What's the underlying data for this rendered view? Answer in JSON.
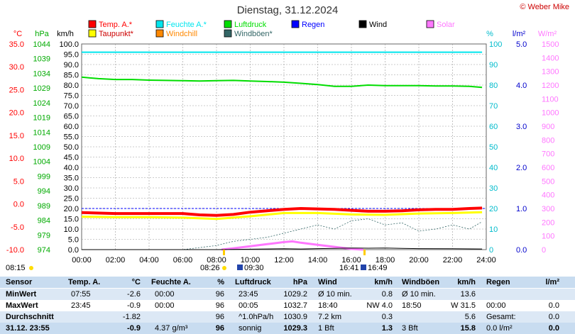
{
  "copyright": "© Weber Mike",
  "chart_data": {
    "type": "line",
    "title": "Dienstag, 31.12.2024",
    "unit_labels": {
      "temp": "°C",
      "pressure": "hPa",
      "wind": "km/h",
      "humidity": "%",
      "rain": "l/m²",
      "solar": "W/m²"
    },
    "axes": {
      "temp": {
        "min": -10,
        "max": 35,
        "ticks": [
          "35.0",
          "30.0",
          "25.0",
          "20.0",
          "15.0",
          "10.0",
          "5.0",
          "0.0",
          "-5.0",
          "-10.0"
        ]
      },
      "pressure": {
        "min": 974,
        "max": 1044,
        "ticks": [
          "1044",
          "1039",
          "1034",
          "1029",
          "1024",
          "1019",
          "1014",
          "1009",
          "1004",
          "999",
          "994",
          "989",
          "984",
          "979",
          "974"
        ]
      },
      "wind": {
        "min": 0,
        "max": 100,
        "ticks": [
          "100.0",
          "95.0",
          "90.0",
          "85.0",
          "80.0",
          "75.0",
          "70.0",
          "65.0",
          "60.0",
          "55.0",
          "50.0",
          "45.0",
          "40.0",
          "35.0",
          "30.0",
          "25.0",
          "20.0",
          "15.0",
          "10.0",
          "5.0",
          "0.0"
        ]
      },
      "humidity": {
        "min": 0,
        "max": 100,
        "ticks": [
          "100",
          "90",
          "80",
          "70",
          "60",
          "50",
          "40",
          "30",
          "20",
          "10",
          "0"
        ]
      },
      "rain": {
        "min": 0,
        "max": 5,
        "ticks": [
          "5.0",
          "4.0",
          "3.0",
          "2.0",
          "1.0",
          "0.0"
        ]
      },
      "solar": {
        "min": 0,
        "max": 1500,
        "ticks": [
          "1500",
          "1400",
          "1300",
          "1200",
          "1100",
          "1000",
          "900",
          "800",
          "700",
          "600",
          "500",
          "400",
          "300",
          "200",
          "100",
          "0"
        ]
      }
    },
    "x_ticks": [
      "00:00",
      "02:00",
      "04:00",
      "06:00",
      "08:00",
      "10:00",
      "12:00",
      "14:00",
      "16:00",
      "18:00",
      "20:00",
      "22:00",
      "24:00"
    ],
    "legend": [
      {
        "name": "Temp. A.*",
        "color": "#ff0000"
      },
      {
        "name": "Feuchte A.*",
        "color": "#00e5ee"
      },
      {
        "name": "Luftdruck",
        "color": "#00dd00"
      },
      {
        "name": "Regen",
        "color": "#0000ff"
      },
      {
        "name": "Wind",
        "color": "#000000"
      },
      {
        "name": "Solar",
        "color": "#ff77ff"
      },
      {
        "name": "Taupunkt*",
        "color": "#ffff00"
      },
      {
        "name": "Windchill",
        "color": "#ff8800"
      },
      {
        "name": "Windböen*",
        "color": "#336666"
      }
    ],
    "sun": {
      "sunrise": "08:15",
      "sunset": "16:41",
      "dawn": "08:26",
      "moonrise": "09:30",
      "moonset": "16:49"
    },
    "series": [
      {
        "name": "Temp. A.*",
        "axis": "temp",
        "x": [
          0,
          2,
          4,
          6,
          7,
          8,
          9,
          10,
          11,
          12,
          13,
          14,
          15,
          16,
          17,
          18,
          19,
          20,
          21,
          22,
          23,
          23.75
        ],
        "y": [
          -1.9,
          -2.1,
          -2.1,
          -2.1,
          -2.4,
          -2.5,
          -2.3,
          -1.8,
          -1.5,
          -1.2,
          -1.0,
          -1.1,
          -1.2,
          -1.4,
          -1.6,
          -1.6,
          -1.5,
          -1.3,
          -1.2,
          -1.2,
          -1.0,
          -0.9
        ]
      },
      {
        "name": "Taupunkt*",
        "axis": "temp",
        "x": [
          0,
          2,
          4,
          6,
          8,
          10,
          12,
          14,
          16,
          18,
          20,
          22,
          23.75
        ],
        "y": [
          -2.8,
          -2.9,
          -2.9,
          -3.0,
          -3.3,
          -2.7,
          -2.0,
          -2.0,
          -2.3,
          -2.4,
          -2.1,
          -2.0,
          -1.8
        ]
      },
      {
        "name": "Feuchte A.*",
        "axis": "humidity",
        "x": [
          0,
          23.75
        ],
        "y": [
          96,
          96
        ]
      },
      {
        "name": "Luftdruck",
        "axis": "pressure",
        "x": [
          0,
          1,
          2,
          3,
          4,
          5,
          6,
          7,
          8,
          9,
          10,
          11,
          12,
          13,
          14,
          15,
          16,
          17,
          18,
          19,
          20,
          21,
          22,
          23,
          23.75
        ],
        "y": [
          1032.7,
          1032.2,
          1031.9,
          1031.9,
          1031.7,
          1031.6,
          1031.5,
          1031.4,
          1031.5,
          1031.6,
          1031.4,
          1031.2,
          1031.0,
          1030.6,
          1030.2,
          1029.6,
          1029.6,
          1030.0,
          1029.8,
          1029.8,
          1029.8,
          1029.7,
          1029.7,
          1029.6,
          1029.2
        ]
      },
      {
        "name": "Windböen*",
        "axis": "wind",
        "x": [
          0,
          2,
          4,
          6,
          7,
          8,
          9,
          10,
          11,
          12,
          13,
          14,
          15,
          16,
          17,
          18,
          19,
          20,
          21,
          22,
          23,
          23.75
        ],
        "y": [
          0,
          0,
          0,
          0,
          1,
          2,
          4,
          5,
          6,
          8,
          10,
          12,
          10,
          14,
          15,
          12,
          13,
          9,
          10,
          12,
          10,
          13.6
        ]
      },
      {
        "name": "Wind",
        "axis": "wind",
        "x": [
          0,
          6,
          8,
          10,
          12,
          13,
          14,
          15,
          16,
          17,
          18,
          19,
          20,
          22,
          23.75
        ],
        "y": [
          0,
          0,
          0,
          0.2,
          0.4,
          0.3,
          0.5,
          0.6,
          0.8,
          0.7,
          0.8,
          0.6,
          0.5,
          0.4,
          0.3
        ]
      },
      {
        "name": "Solar",
        "axis": "solar",
        "x": [
          8.3,
          9,
          10,
          11,
          12,
          12.5,
          13,
          14,
          15,
          16,
          16.7
        ],
        "y": [
          0,
          10,
          25,
          40,
          55,
          60,
          50,
          35,
          20,
          5,
          0
        ]
      }
    ],
    "rain_reference": {
      "axis": "rain",
      "y": 1.0
    }
  },
  "stats": {
    "header": [
      "Sensor",
      "Temp. A.",
      "°C",
      "Feuchte A.",
      "%",
      "Luftdruck",
      "hPa",
      "Wind",
      "km/h",
      "Windböen",
      "km/h",
      "Regen",
      "l/m²"
    ],
    "rows": [
      [
        "MinWert",
        "07:55",
        "-2.6",
        "00:00",
        "96",
        "23:45",
        "1029.2",
        "Ø 10 min.",
        "0.8",
        "Ø 10 min.",
        "13.6",
        "",
        ""
      ],
      [
        "MaxWert",
        "23:45",
        "-0.9",
        "00:00",
        "96",
        "00:05",
        "1032.7",
        "18:40",
        "NW 4.0",
        "18:50",
        "W 31.5",
        "00:00",
        "0.0"
      ],
      [
        "Durchschnitt",
        "",
        "-1.82",
        "",
        "96",
        "^1.0hPa/h",
        "1030.9",
        "7.2 km",
        "0.3",
        "",
        "5.6",
        "Gesamt:",
        "0.0"
      ],
      [
        "31.12. 23:55",
        "",
        "-0.9",
        "4.37 g/m³",
        "96",
        "sonnig",
        "1029.3",
        "1 Bft",
        "1.3",
        "3 Bft",
        "15.8",
        "0.0 l/m²",
        "0.0"
      ]
    ]
  }
}
